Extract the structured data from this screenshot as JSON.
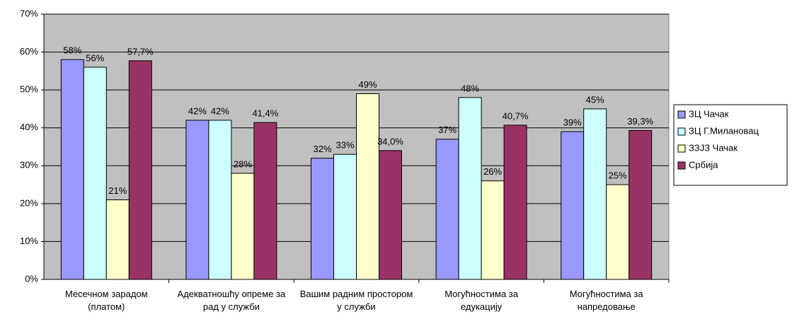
{
  "chart_data": {
    "type": "bar",
    "categories": [
      "Месечном зарадом (платом)",
      "Адекватношћу опреме за рад у служби",
      "Вашим радним простором у служби",
      "Могућностима за едукацију",
      "Могућностима за напредовање"
    ],
    "series": [
      {
        "name": "ЗЦ Чачак",
        "color": "#9999ff",
        "values": [
          58,
          42,
          32,
          37,
          39
        ],
        "value_labels": [
          "58%",
          "42%",
          "32%",
          "37%",
          "39%"
        ]
      },
      {
        "name": "ЗЦ Г.Милановац",
        "color": "#ccffff",
        "values": [
          56,
          42,
          33,
          48,
          45
        ],
        "value_labels": [
          "56%",
          "42%",
          "33%",
          "48%",
          "45%"
        ]
      },
      {
        "name": "ЗЗЈЗ Чачак",
        "color": "#ffffcc",
        "values": [
          21,
          28,
          49,
          26,
          25
        ],
        "value_labels": [
          "21%",
          "28%",
          "49%",
          "26%",
          "25%"
        ]
      },
      {
        "name": "Србија",
        "color": "#993366",
        "values": [
          57.7,
          41.4,
          34,
          40.7,
          39.3
        ],
        "value_labels": [
          "57,7%",
          "41,4%",
          "34,0%",
          "40,7%",
          "39,3%"
        ]
      }
    ],
    "ylim": [
      0,
      70
    ],
    "yticks": [
      {
        "value": 0,
        "label": "0%"
      },
      {
        "value": 10,
        "label": "10%"
      },
      {
        "value": 20,
        "label": "20%"
      },
      {
        "value": 30,
        "label": "30%"
      },
      {
        "value": 40,
        "label": "40%"
      },
      {
        "value": 50,
        "label": "50%"
      },
      {
        "value": 60,
        "label": "60%"
      },
      {
        "value": 70,
        "label": "70%"
      }
    ],
    "grid": true,
    "legend": "right"
  }
}
